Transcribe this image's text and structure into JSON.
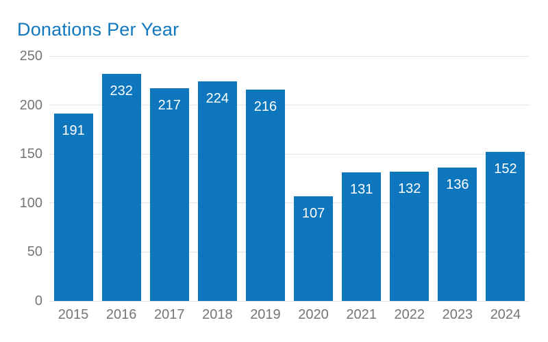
{
  "chart_data": {
    "type": "bar",
    "title": "Donations Per Year",
    "categories": [
      "2015",
      "2016",
      "2017",
      "2018",
      "2019",
      "2020",
      "2021",
      "2022",
      "2023",
      "2024"
    ],
    "values": [
      191,
      232,
      217,
      224,
      216,
      107,
      131,
      132,
      136,
      152
    ],
    "xlabel": "",
    "ylabel": "",
    "ylim": [
      0,
      250
    ],
    "yticks": [
      0,
      50,
      100,
      150,
      200,
      250
    ],
    "grid": true,
    "legend": "none",
    "value_labels_position": "inside-top",
    "colors": {
      "bar": "#0e76bc",
      "title": "#1278be",
      "axis_label": "#757575",
      "gridline": "#e2e2e2",
      "value_label": "#ffffff",
      "background": "#ffffff"
    }
  }
}
